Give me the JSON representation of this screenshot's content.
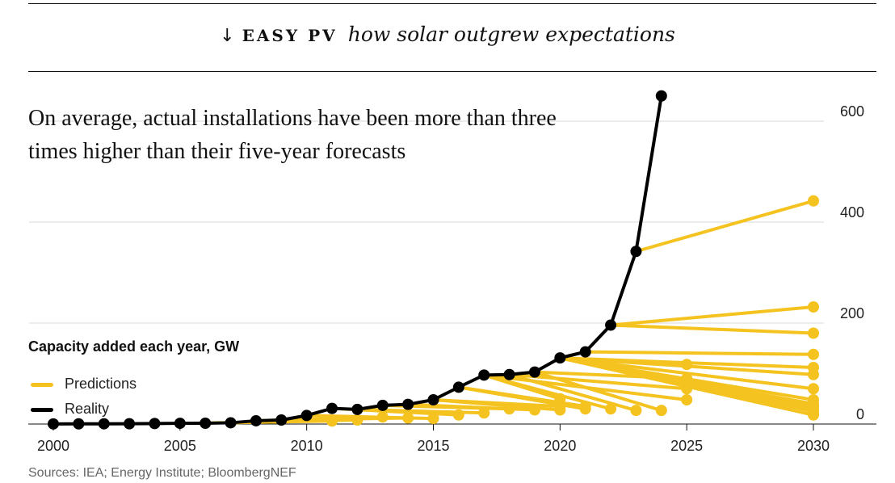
{
  "header": {
    "arrow": "↓",
    "bold": "EASY PV",
    "italic": "how solar outgrew expectations"
  },
  "headline": "On average, actual installations have been more than three times higher than their five-year forecasts",
  "footer": {
    "source": "Sources: IEA; Energy Institute; BloombergNEF"
  },
  "colors": {
    "prediction": "#f5c320",
    "reality": "#000000",
    "grid": "#d9d9d9",
    "rule": "#111111"
  },
  "chart_data": {
    "type": "line",
    "ylabel": "Capacity added each year, GW",
    "xlim": [
      2000,
      2030
    ],
    "ylim": [
      0,
      650
    ],
    "xticks": [
      2000,
      2005,
      2010,
      2015,
      2020,
      2025,
      2030
    ],
    "yticks": [
      0,
      200,
      400,
      600
    ],
    "grid": true,
    "legend": [
      {
        "name": "Predictions",
        "color": "#f5c320"
      },
      {
        "name": "Reality",
        "color": "#000000"
      }
    ],
    "series": [
      {
        "name": "Reality",
        "x": [
          2000,
          2001,
          2002,
          2003,
          2004,
          2005,
          2006,
          2007,
          2008,
          2009,
          2010,
          2011,
          2012,
          2013,
          2014,
          2015,
          2016,
          2017,
          2018,
          2019,
          2020,
          2021,
          2022,
          2023,
          2024
        ],
        "y": [
          0.3,
          0.4,
          0.5,
          0.6,
          1,
          1.5,
          1.6,
          2.5,
          6.5,
          8,
          17,
          31,
          29,
          37,
          39,
          48,
          73,
          97,
          98,
          103,
          131,
          143,
          196,
          342,
          650
        ]
      },
      {
        "name": "Predictions",
        "lines": [
          [
            [
              2006,
              2
            ],
            [
              2011,
              6
            ]
          ],
          [
            [
              2007,
              2.5
            ],
            [
              2012,
              8
            ]
          ],
          [
            [
              2008,
              6.5
            ],
            [
              2013,
              14
            ]
          ],
          [
            [
              2009,
              8
            ],
            [
              2014,
              12
            ]
          ],
          [
            [
              2010,
              17
            ],
            [
              2015,
              11
            ]
          ],
          [
            [
              2011,
              31
            ],
            [
              2016,
              18
            ]
          ],
          [
            [
              2012,
              29
            ],
            [
              2017,
              22
            ]
          ],
          [
            [
              2013,
              37
            ],
            [
              2018,
              30
            ]
          ],
          [
            [
              2014,
              39
            ],
            [
              2019,
              28
            ]
          ],
          [
            [
              2015,
              48
            ],
            [
              2020,
              35
            ]
          ],
          [
            [
              2016,
              73
            ],
            [
              2021,
              35
            ]
          ],
          [
            [
              2017,
              97
            ],
            [
              2022,
              30
            ]
          ],
          [
            [
              2018,
              98
            ],
            [
              2023,
              27
            ]
          ],
          [
            [
              2019,
              103
            ],
            [
              2024,
              27
            ]
          ],
          [
            [
              2015,
              48
            ],
            [
              2020,
              28
            ]
          ],
          [
            [
              2016,
              73
            ],
            [
              2021,
              30
            ]
          ],
          [
            [
              2017,
              97
            ],
            [
              2025,
              48
            ]
          ],
          [
            [
              2018,
              98
            ],
            [
              2025,
              70
            ]
          ],
          [
            [
              2019,
              103
            ],
            [
              2025,
              90
            ]
          ],
          [
            [
              2020,
              131
            ],
            [
              2025,
              118
            ]
          ],
          [
            [
              2017,
              97
            ],
            [
              2020,
              50
            ]
          ],
          [
            [
              2020,
              131
            ],
            [
              2030,
              18
            ]
          ],
          [
            [
              2020,
              131
            ],
            [
              2030,
              25
            ]
          ],
          [
            [
              2020,
              131
            ],
            [
              2030,
              30
            ]
          ],
          [
            [
              2020,
              131
            ],
            [
              2030,
              35
            ]
          ],
          [
            [
              2020,
              131
            ],
            [
              2030,
              40
            ]
          ],
          [
            [
              2020,
              131
            ],
            [
              2030,
              48
            ]
          ],
          [
            [
              2020,
              131
            ],
            [
              2030,
              70
            ]
          ],
          [
            [
              2020,
              131
            ],
            [
              2030,
              98
            ]
          ],
          [
            [
              2020,
              131
            ],
            [
              2030,
              112
            ]
          ],
          [
            [
              2021,
              143
            ],
            [
              2030,
              138
            ]
          ],
          [
            [
              2022,
              196
            ],
            [
              2030,
              180
            ]
          ],
          [
            [
              2022,
              196
            ],
            [
              2030,
              232
            ]
          ],
          [
            [
              2023,
              342
            ],
            [
              2030,
              442
            ]
          ]
        ]
      }
    ]
  }
}
